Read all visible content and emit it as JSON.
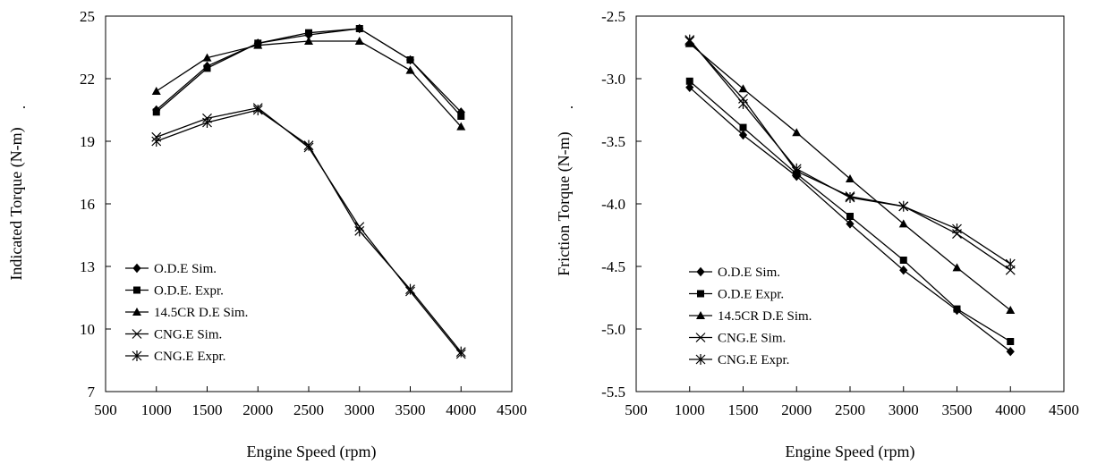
{
  "chart_data": [
    {
      "type": "line",
      "xlabel": "Engine Speed (rpm)",
      "ylabel": "Indicated Torque (N-m)",
      "xlim": [
        500,
        4500
      ],
      "ylim": [
        7,
        25
      ],
      "xticks": [
        500,
        1000,
        1500,
        2000,
        2500,
        3000,
        3500,
        4000,
        4500
      ],
      "yticks": [
        7,
        10,
        13,
        16,
        19,
        22,
        25
      ],
      "grid": false,
      "legend_position": "bottom-left",
      "x": [
        1000,
        1500,
        2000,
        2500,
        3000,
        3500,
        4000
      ],
      "series": [
        {
          "name": "O.D.E Sim.",
          "marker": "diamond",
          "values": [
            20.5,
            22.6,
            23.7,
            24.1,
            24.4,
            22.9,
            20.4
          ]
        },
        {
          "name": "O.D.E. Expr.",
          "marker": "square",
          "values": [
            20.4,
            22.5,
            23.7,
            24.2,
            24.4,
            22.9,
            20.2
          ]
        },
        {
          "name": "14.5CR D.E Sim.",
          "marker": "triangle",
          "values": [
            21.4,
            23.0,
            23.6,
            23.8,
            23.8,
            22.4,
            19.7
          ]
        },
        {
          "name": "CNG.E Sim.",
          "marker": "x",
          "values": [
            19.2,
            20.1,
            20.6,
            18.7,
            14.9,
            11.8,
            8.8
          ]
        },
        {
          "name": "CNG.E Expr.",
          "marker": "star",
          "values": [
            19.0,
            19.9,
            20.5,
            18.8,
            14.7,
            11.9,
            8.9
          ]
        }
      ]
    },
    {
      "type": "line",
      "xlabel": "Engine Speed (rpm)",
      "ylabel": "Friction Torque (N-m)",
      "xlim": [
        500,
        4500
      ],
      "ylim": [
        -5.5,
        -2.5
      ],
      "xticks": [
        500,
        1000,
        1500,
        2000,
        2500,
        3000,
        3500,
        4000,
        4500
      ],
      "yticks": [
        -2.5,
        -3.0,
        -3.5,
        -4.0,
        -4.5,
        -5.0,
        -5.5
      ],
      "grid": false,
      "legend_position": "bottom-left",
      "x": [
        1000,
        1500,
        2000,
        2500,
        3000,
        3500,
        4000
      ],
      "series": [
        {
          "name": "O.D.E Sim.",
          "marker": "diamond",
          "values": [
            -3.07,
            -3.45,
            -3.78,
            -4.16,
            -4.53,
            -4.85,
            -5.18
          ]
        },
        {
          "name": "O.D.E Expr.",
          "marker": "square",
          "values": [
            -3.02,
            -3.39,
            -3.76,
            -4.1,
            -4.45,
            -4.84,
            -5.1
          ]
        },
        {
          "name": "14.5CR D.E Sim.",
          "marker": "triangle",
          "values": [
            -2.72,
            -3.08,
            -3.43,
            -3.8,
            -4.16,
            -4.51,
            -4.85
          ]
        },
        {
          "name": "CNG.E Sim.",
          "marker": "x",
          "values": [
            -2.7,
            -3.16,
            -3.74,
            -3.94,
            -4.02,
            -4.24,
            -4.53
          ]
        },
        {
          "name": "CNG.E Expr.",
          "marker": "star",
          "values": [
            -2.69,
            -3.2,
            -3.72,
            -3.95,
            -4.02,
            -4.2,
            -4.48
          ]
        }
      ]
    }
  ]
}
